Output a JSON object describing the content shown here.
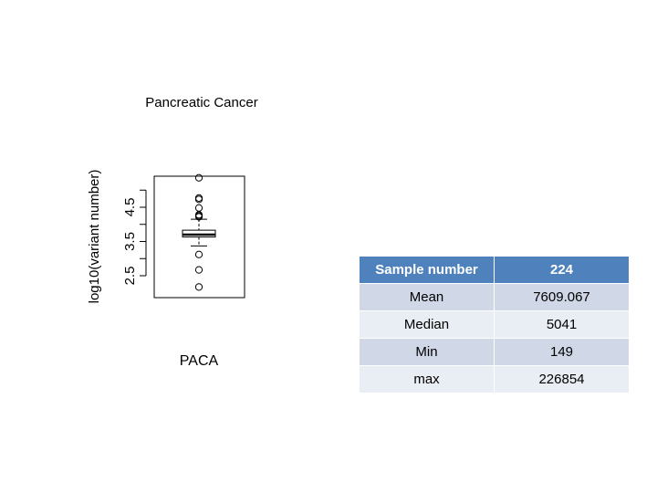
{
  "chart_data": {
    "type": "boxplot",
    "title": "Pancreatic Cancer",
    "ylabel": "log10(variant number)",
    "category": "PACA",
    "yticks": [
      "2.5",
      "3.5",
      "4.5"
    ],
    "ytick_values": [
      2.5,
      3.5,
      4.5
    ],
    "ylim": [
      2.1,
      5.4
    ],
    "box": {
      "lower_whisker": 3.37,
      "q1": 3.63,
      "median": 3.7,
      "q3": 3.83,
      "upper_whisker": 4.15
    },
    "outliers": [
      5.36,
      4.77,
      4.73,
      4.48,
      4.28,
      4.25,
      4.22,
      3.12,
      2.67,
      2.17
    ]
  },
  "table": {
    "header": [
      "Sample number",
      "224"
    ],
    "rows": [
      [
        "Mean",
        "7609.067"
      ],
      [
        "Median",
        "5041"
      ],
      [
        "Min",
        "149"
      ],
      [
        "max",
        "226854"
      ]
    ]
  }
}
